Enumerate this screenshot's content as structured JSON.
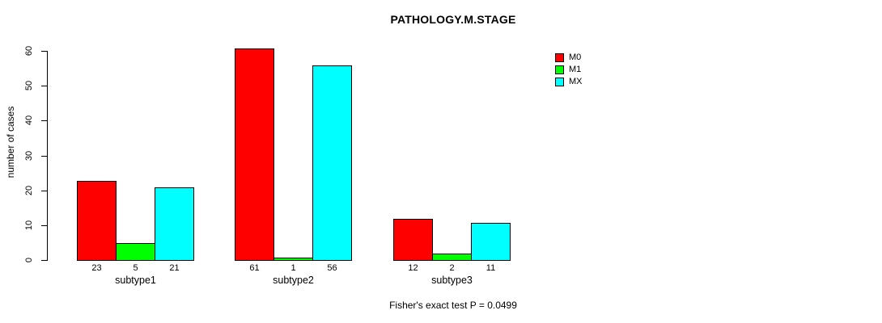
{
  "chart_data": {
    "type": "bar",
    "title": "PATHOLOGY.M.STAGE",
    "xlabel": "",
    "ylabel": "number of cases",
    "categories": [
      "subtype1",
      "subtype2",
      "subtype3"
    ],
    "series": [
      {
        "name": "M0",
        "color": "#ff0000",
        "values": [
          23,
          61,
          12
        ]
      },
      {
        "name": "M1",
        "color": "#00ff00",
        "values": [
          5,
          1,
          2
        ]
      },
      {
        "name": "MX",
        "color": "#00ffff",
        "values": [
          21,
          56,
          11
        ]
      }
    ],
    "value_labels": [
      [
        "23",
        "5",
        "21"
      ],
      [
        "61",
        "1",
        "56"
      ],
      [
        "12",
        "2",
        "11"
      ]
    ],
    "yticks": [
      0,
      10,
      20,
      30,
      40,
      50,
      60
    ],
    "ylim": [
      0,
      61
    ],
    "grid": false,
    "legend_position": "top-right",
    "legend_entries": [
      "M0",
      "M1",
      "MX"
    ],
    "annotation": "Fisher's exact test P = 0.0499",
    "axis_color": "#000000",
    "background_color": "#ffffff"
  }
}
